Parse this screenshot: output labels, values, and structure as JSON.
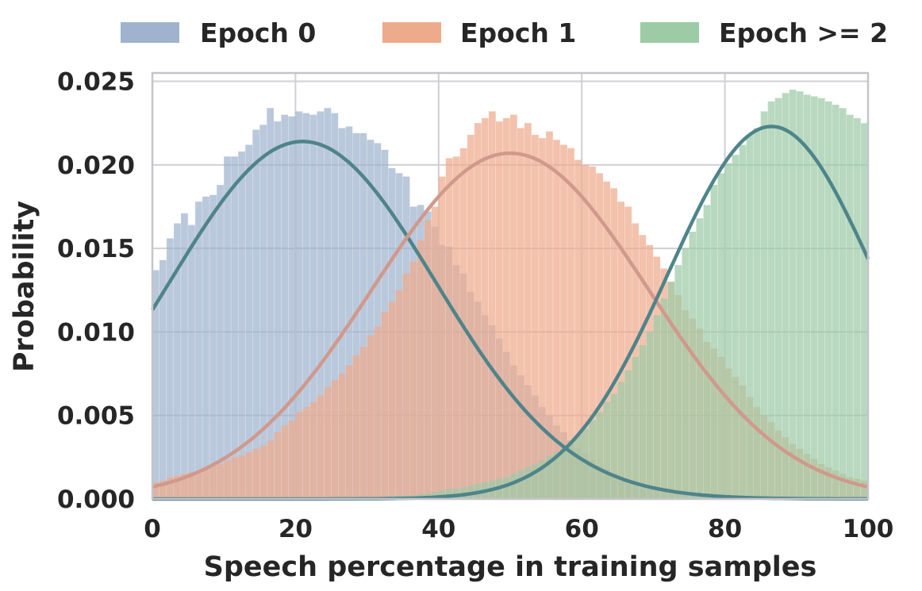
{
  "chart_data": {
    "type": "histogram",
    "xlabel": "Speech percentage in training samples",
    "ylabel": "Probability",
    "xlim": [
      0,
      100
    ],
    "ylim": [
      0,
      0.0255
    ],
    "x_ticks": [
      "0",
      "20",
      "40",
      "60",
      "80",
      "100"
    ],
    "y_ticks": [
      "0.000",
      "0.005",
      "0.010",
      "0.015",
      "0.020",
      "0.025"
    ],
    "x_tick_values": [
      0,
      20,
      40,
      60,
      80,
      100
    ],
    "y_tick_values": [
      0,
      0.005,
      0.01,
      0.015,
      0.02,
      0.025
    ],
    "grid": true,
    "legend_position": "top",
    "bin_width": 1,
    "series": [
      {
        "name": "Epoch 0",
        "color": "#9fb3cf",
        "fit_curve": {
          "mean": 21,
          "std": 18.6,
          "peak": 0.0214,
          "color": "#4e848a"
        },
        "values": [
          0.0137,
          0.0143,
          0.0156,
          0.0165,
          0.0171,
          0.0164,
          0.0178,
          0.0181,
          0.0182,
          0.0188,
          0.0205,
          0.0205,
          0.0208,
          0.0212,
          0.0221,
          0.0224,
          0.0234,
          0.0226,
          0.023,
          0.0229,
          0.0232,
          0.0231,
          0.023,
          0.0232,
          0.0234,
          0.0231,
          0.0222,
          0.0223,
          0.0219,
          0.0219,
          0.0215,
          0.0213,
          0.0209,
          0.0198,
          0.0195,
          0.0193,
          0.0175,
          0.0176,
          0.0172,
          0.0163,
          0.0152,
          0.0151,
          0.014,
          0.0135,
          0.0124,
          0.0118,
          0.011,
          0.0104,
          0.0096,
          0.0088,
          0.008,
          0.0074,
          0.0068,
          0.0062,
          0.0055,
          0.005,
          0.0044,
          0.004,
          0.0035,
          0.0031,
          0.0027,
          0.0023,
          0.002,
          0.0018,
          0.0015,
          0.0013,
          0.0011,
          0.0009,
          0.0008,
          0.0007,
          0.0006,
          0.0005,
          0.0004,
          0.0004,
          0.0003,
          0.0003,
          0.0002,
          0.0002,
          0.0002,
          0.0001,
          0.0001,
          0.0001,
          0.0001,
          0.0001,
          0.0001,
          0.0001,
          0.0001,
          0.0001,
          0.0001,
          0.0001,
          0.0001,
          0.0001,
          0.0001,
          0.0001,
          0.0001,
          0.0001,
          0.0001,
          0.0001,
          0.0001,
          0.0001
        ]
      },
      {
        "name": "Epoch 1",
        "color": "#eeab8c",
        "fit_curve": {
          "mean": 50,
          "std": 19.3,
          "peak": 0.0207,
          "color": "#d0998b"
        },
        "values": [
          0.001,
          0.0011,
          0.0013,
          0.0014,
          0.0015,
          0.0016,
          0.0017,
          0.0018,
          0.002,
          0.0021,
          0.0023,
          0.0025,
          0.0026,
          0.0028,
          0.003,
          0.0032,
          0.0035,
          0.004,
          0.0044,
          0.0047,
          0.0052,
          0.0055,
          0.0058,
          0.0062,
          0.0067,
          0.0071,
          0.0075,
          0.008,
          0.0086,
          0.0091,
          0.0098,
          0.0103,
          0.0112,
          0.0118,
          0.0125,
          0.0135,
          0.0142,
          0.0155,
          0.0167,
          0.0175,
          0.0193,
          0.0204,
          0.0205,
          0.021,
          0.0218,
          0.0225,
          0.0228,
          0.0232,
          0.0226,
          0.0228,
          0.023,
          0.0222,
          0.0225,
          0.0218,
          0.0216,
          0.022,
          0.0215,
          0.0212,
          0.021,
          0.0203,
          0.02,
          0.0199,
          0.0195,
          0.019,
          0.0186,
          0.0178,
          0.0175,
          0.0165,
          0.0158,
          0.0152,
          0.0145,
          0.0138,
          0.013,
          0.0122,
          0.0113,
          0.0108,
          0.0102,
          0.0094,
          0.009,
          0.0085,
          0.0078,
          0.0073,
          0.0068,
          0.0061,
          0.0055,
          0.005,
          0.0046,
          0.0041,
          0.0037,
          0.0033,
          0.003,
          0.0027,
          0.0024,
          0.0021,
          0.0019,
          0.0017,
          0.0015,
          0.0013,
          0.0012,
          0.0011
        ]
      },
      {
        "name": "Epoch >= 2",
        "color": "#9ccba6",
        "fit_curve": {
          "mean": 86.5,
          "std": 14.4,
          "peak": 0.0223,
          "color": "#4e848a"
        },
        "values": [
          0.0,
          0.0,
          0.0,
          0.0,
          0.0,
          0.0,
          0.0,
          0.0,
          0.0,
          0.0,
          0.0,
          0.0,
          0.0,
          0.0,
          0.0,
          0.0,
          0.0,
          0.0,
          0.0,
          0.0,
          0.0,
          0.0,
          0.0,
          0.0,
          0.0001,
          0.0001,
          0.0001,
          0.0001,
          0.0001,
          0.0001,
          0.0001,
          0.0001,
          0.0001,
          0.0002,
          0.0002,
          0.0002,
          0.0002,
          0.0003,
          0.0003,
          0.0004,
          0.0005,
          0.0006,
          0.0006,
          0.0007,
          0.0008,
          0.0009,
          0.001,
          0.0011,
          0.0012,
          0.0013,
          0.0015,
          0.0017,
          0.0019,
          0.0021,
          0.0023,
          0.0026,
          0.0028,
          0.0031,
          0.0035,
          0.0038,
          0.0042,
          0.0047,
          0.0052,
          0.0058,
          0.0063,
          0.007,
          0.0077,
          0.0085,
          0.0092,
          0.01,
          0.011,
          0.012,
          0.013,
          0.014,
          0.015,
          0.016,
          0.0168,
          0.0176,
          0.0188,
          0.0195,
          0.0201,
          0.0206,
          0.0212,
          0.0218,
          0.0222,
          0.0232,
          0.0238,
          0.024,
          0.0243,
          0.0245,
          0.0244,
          0.0242,
          0.0241,
          0.024,
          0.0238,
          0.0236,
          0.0234,
          0.023,
          0.0228,
          0.0225
        ]
      }
    ]
  }
}
